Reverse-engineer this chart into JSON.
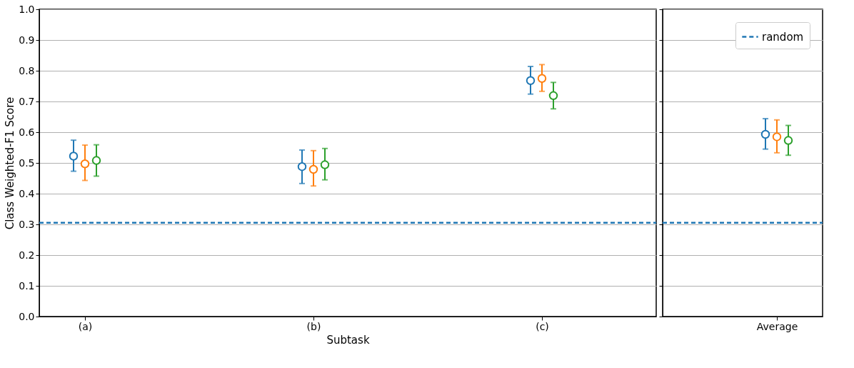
{
  "chart_data": [
    {
      "type": "scatter",
      "xlabel": "Subtask",
      "ylabel": "Class Weighted-F1 Score",
      "categories": [
        "(a)",
        "(b)",
        "(c)"
      ],
      "series": [
        {
          "color": "#1f77b4",
          "values": [
            0.522,
            0.488,
            0.768
          ],
          "errors": [
            [
              0.473,
              0.574
            ],
            [
              0.433,
              0.542
            ],
            [
              0.724,
              0.814
            ]
          ]
        },
        {
          "color": "#ff7f0e",
          "values": [
            0.497,
            0.479,
            0.775
          ],
          "errors": [
            [
              0.443,
              0.558
            ],
            [
              0.425,
              0.54
            ],
            [
              0.733,
              0.82
            ]
          ]
        },
        {
          "color": "#2ca02c",
          "values": [
            0.508,
            0.494,
            0.719
          ],
          "errors": [
            [
              0.457,
              0.559
            ],
            [
              0.445,
              0.547
            ],
            [
              0.676,
              0.762
            ]
          ]
        }
      ],
      "ylim": [
        0,
        1
      ],
      "yticks": [
        {
          "value": 0,
          "label": "0.0"
        },
        0.1,
        0.2,
        0.3,
        0.4,
        0.5,
        0.6,
        0.7,
        0.8,
        0.9,
        {
          "value": 1,
          "label": "1.0"
        }
      ],
      "ref_lines": [
        {
          "axis": "y",
          "value": 0.305,
          "color": "#1f77b4",
          "line_style": "dashed"
        }
      ],
      "grid": "y",
      "marker": "circle"
    },
    {
      "type": "scatter",
      "categories": [
        "Average"
      ],
      "series": [
        {
          "color": "#1f77b4",
          "values": [
            0.593
          ],
          "errors": [
            [
              0.545,
              0.644
            ]
          ]
        },
        {
          "color": "#ff7f0e",
          "values": [
            0.585
          ],
          "errors": [
            [
              0.533,
              0.64
            ]
          ]
        },
        {
          "color": "#2ca02c",
          "values": [
            0.573
          ],
          "errors": [
            [
              0.525,
              0.622
            ]
          ]
        }
      ],
      "ylim": [
        0,
        1
      ],
      "yticks": [
        0,
        0.1,
        0.2,
        0.3,
        0.4,
        0.5,
        0.6,
        0.7,
        0.8,
        0.9,
        1
      ],
      "ref_lines": [
        {
          "axis": "y",
          "value": 0.305,
          "label": "random",
          "color": "#1f77b4",
          "line_style": "dashed"
        }
      ],
      "grid": "y",
      "legend": "top right",
      "marker": "circle",
      "tick_labels": "x"
    }
  ]
}
